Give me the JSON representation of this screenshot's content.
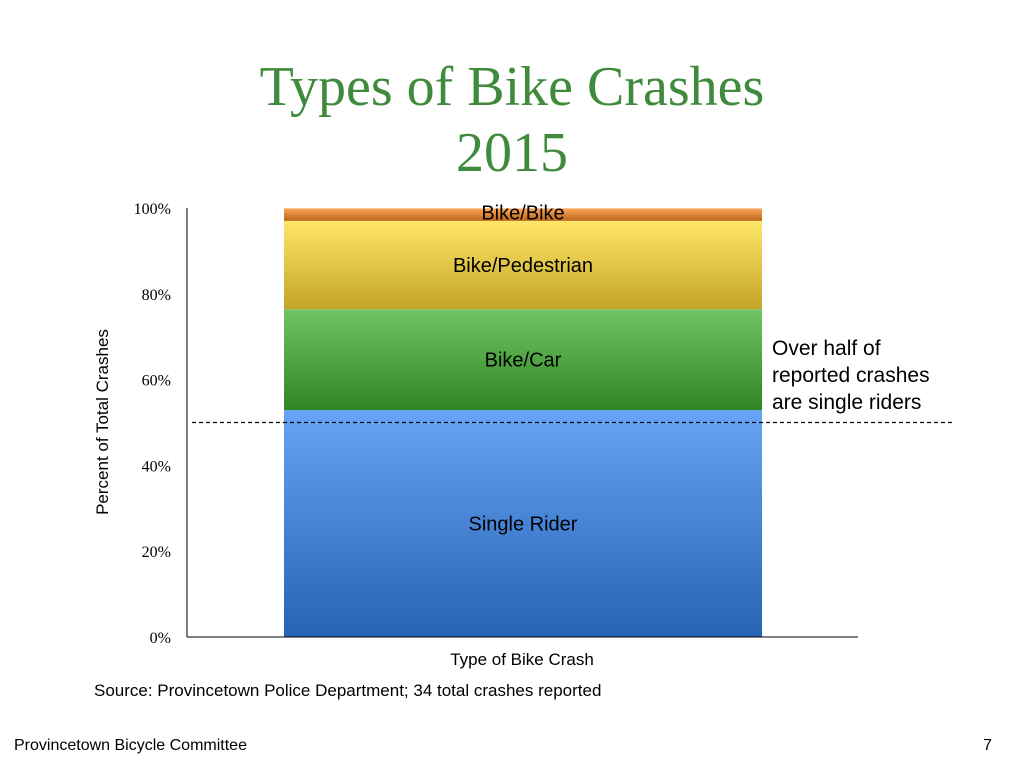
{
  "slide": {
    "title_line1": "Types of Bike Crashes",
    "title_line2": "2015",
    "source": "Source: Provincetown Police Department; 34 total crashes reported",
    "note_lines": [
      "Over half of",
      "reported crashes",
      "are single riders"
    ],
    "footer_left": "Provincetown Bicycle Committee",
    "page_number": "7"
  },
  "chart_data": {
    "type": "bar",
    "stacked": true,
    "categories": [
      ""
    ],
    "series": [
      {
        "name": "Single Rider",
        "values": [
          52.9
        ],
        "color": "#4a86d8"
      },
      {
        "name": "Bike/Car",
        "values": [
          23.5
        ],
        "color": "#53a846"
      },
      {
        "name": "Bike/Pedestrian",
        "values": [
          20.6
        ],
        "color": "#e6c84a"
      },
      {
        "name": "Bike/Bike",
        "values": [
          2.9
        ],
        "color": "#e0883a"
      }
    ],
    "xlabel": "Type of Bike Crash",
    "ylabel": "Percent of Total Crashes",
    "ylim": [
      0,
      100
    ],
    "yticks": [
      "0%",
      "20%",
      "40%",
      "60%",
      "80%",
      "100%"
    ],
    "reference_line": {
      "y": 50,
      "style": "dashed"
    },
    "grid": false,
    "legend": "none"
  }
}
